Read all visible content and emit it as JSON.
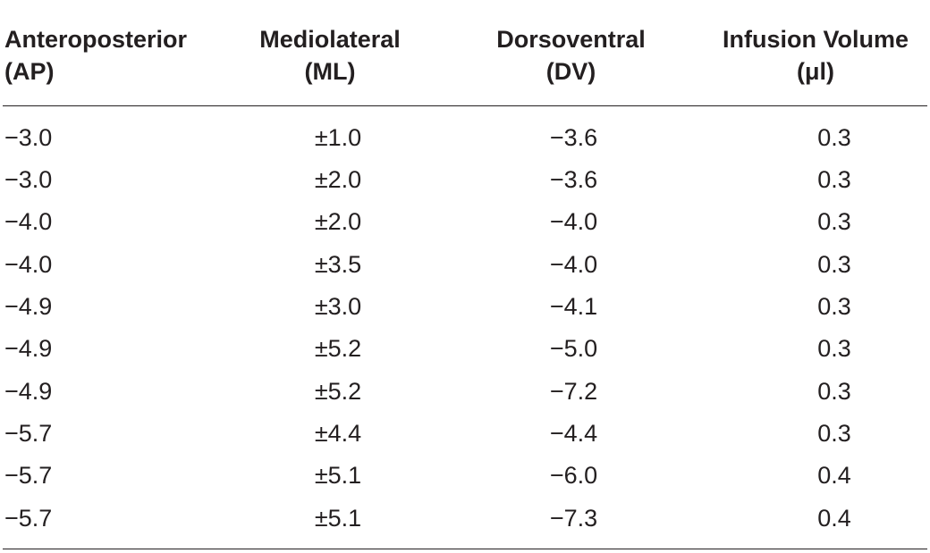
{
  "table": {
    "headers": [
      {
        "line1": "Anteroposterior",
        "line2": "(AP)"
      },
      {
        "line1": "Mediolateral",
        "line2": "(ML)"
      },
      {
        "line1": "Dorsoventral",
        "line2": "(DV)"
      },
      {
        "line1": "Infusion Volume",
        "line2": "(μl)"
      }
    ],
    "rows": [
      [
        "−3.0",
        "±1.0",
        "−3.6",
        "0.3"
      ],
      [
        "−3.0",
        "±2.0",
        "−3.6",
        "0.3"
      ],
      [
        "−4.0",
        "±2.0",
        "−4.0",
        "0.3"
      ],
      [
        "−4.0",
        "±3.5",
        "−4.0",
        "0.3"
      ],
      [
        "−4.9",
        "±3.0",
        "−4.1",
        "0.3"
      ],
      [
        "−4.9",
        "±5.2",
        "−5.0",
        "0.3"
      ],
      [
        "−4.9",
        "±5.2",
        "−7.2",
        "0.3"
      ],
      [
        "−5.7",
        "±4.4",
        "−4.4",
        "0.3"
      ],
      [
        "−5.7",
        "±5.1",
        "−6.0",
        "0.4"
      ],
      [
        "−5.7",
        "±5.1",
        "−7.3",
        "0.4"
      ]
    ]
  }
}
